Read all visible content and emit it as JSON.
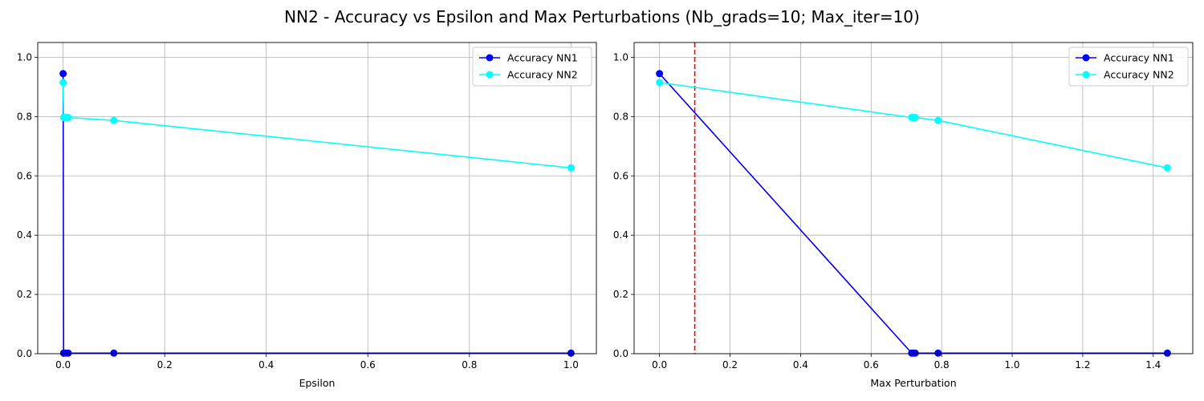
{
  "figure": {
    "suptitle": "NN2 - Accuracy vs Epsilon and Max Perturbations (Nb_grads=10; Max_iter=10)"
  },
  "chart_data": [
    {
      "type": "line",
      "title": "",
      "xlabel": "Epsilon",
      "ylabel": "",
      "xlim": [
        -0.05,
        1.05
      ],
      "ylim": [
        0,
        1.05
      ],
      "xticks": [
        "0.0",
        "0.2",
        "0.4",
        "0.6",
        "0.8",
        "1.0"
      ],
      "yticks": [
        "0.0",
        "0.2",
        "0.4",
        "0.6",
        "0.8",
        "1.0"
      ],
      "grid": true,
      "legend_position": "upper-right",
      "series": [
        {
          "name": "Accuracy NN1",
          "color": "#0000ff",
          "x": [
            0.0,
            0.001,
            0.005,
            0.01,
            0.1,
            1.0
          ],
          "y": [
            0.945,
            0.002,
            0.002,
            0.002,
            0.002,
            0.002
          ]
        },
        {
          "name": "Accuracy NN2",
          "color": "#00ffff",
          "x": [
            0.0,
            0.001,
            0.005,
            0.01,
            0.1,
            1.0
          ],
          "y": [
            0.915,
            0.797,
            0.797,
            0.797,
            0.787,
            0.627
          ]
        }
      ],
      "vlines": []
    },
    {
      "type": "line",
      "title": "",
      "xlabel": "Max Perturbation",
      "ylabel": "",
      "xlim": [
        -0.072,
        1.512
      ],
      "ylim": [
        0,
        1.05
      ],
      "xticks": [
        "0.0",
        "0.2",
        "0.4",
        "0.6",
        "0.8",
        "1.0",
        "1.2",
        "1.4"
      ],
      "yticks": [
        "0.0",
        "0.2",
        "0.4",
        "0.6",
        "0.8",
        "1.0"
      ],
      "grid": true,
      "legend_position": "upper-right",
      "series": [
        {
          "name": "Accuracy NN1",
          "color": "#0000ff",
          "x": [
            0.0,
            0.715,
            0.72,
            0.725,
            0.79,
            1.44
          ],
          "y": [
            0.945,
            0.002,
            0.002,
            0.002,
            0.002,
            0.002
          ]
        },
        {
          "name": "Accuracy NN2",
          "color": "#00ffff",
          "x": [
            0.0,
            0.715,
            0.72,
            0.725,
            0.79,
            1.44
          ],
          "y": [
            0.915,
            0.797,
            0.797,
            0.797,
            0.787,
            0.627
          ]
        }
      ],
      "vlines": [
        {
          "x": 0.1,
          "color": "#ff0000",
          "style": "dashed"
        }
      ]
    }
  ]
}
